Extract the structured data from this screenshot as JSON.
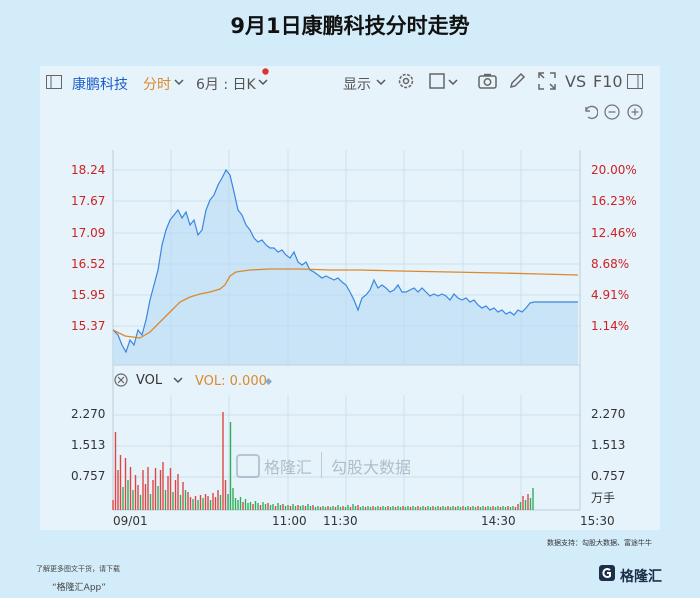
{
  "title": "9月1日康鹏科技分时走势",
  "toolbar": {
    "stock_name": "康鹏科技",
    "mode": "分时",
    "period": "6月 : 日K",
    "display": "显示",
    "vs": "VS",
    "f10": "F10"
  },
  "price_axis": [
    "18.24",
    "17.67",
    "17.09",
    "16.52",
    "15.95",
    "15.37"
  ],
  "pct_axis": [
    "20.00%",
    "16.23%",
    "12.46%",
    "8.68%",
    "4.91%",
    "1.14%"
  ],
  "vol_legend": {
    "label": "VOL",
    "value": "VOL: 0.000"
  },
  "vol_axis_left": [
    "2.270",
    "1.513",
    "0.757"
  ],
  "vol_axis_right": [
    "2.270",
    "1.513",
    "0.757",
    "万手"
  ],
  "time_axis": [
    "09/01",
    "11:00",
    "11:30",
    "14:30",
    "15:30"
  ],
  "watermark": {
    "brand": "格隆汇",
    "source": "勾股大数据"
  },
  "footer": {
    "left_line1": "了解更多图文干货，请下载",
    "left_line2": "“格隆汇App”",
    "right": "数据支持：勾股大数据、富途牛牛",
    "logo": "格隆汇"
  },
  "colors": {
    "price_line": "#3a86e0",
    "avg_line": "#d98a2c",
    "up": "#e04545",
    "down": "#2fae5a",
    "axis_red": "#cc2222"
  }
}
